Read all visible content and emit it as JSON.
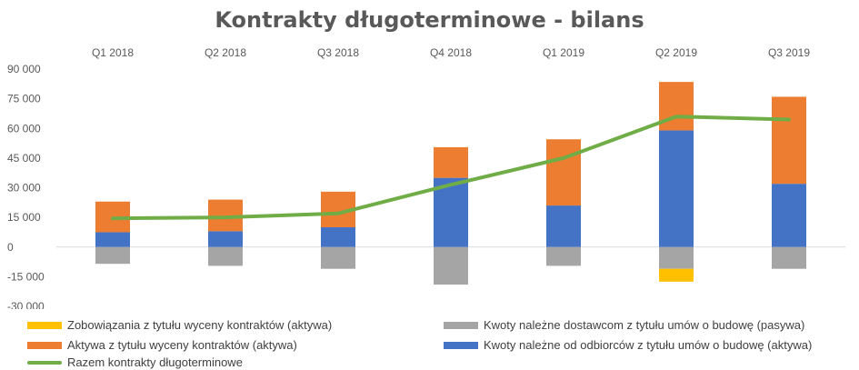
{
  "chart_data": {
    "type": "bar",
    "title": "Kontrakty długoterminowe - bilans",
    "categories": [
      "Q1 2018",
      "Q2 2018",
      "Q3 2018",
      "Q4 2018",
      "Q1 2019",
      "Q2 2019",
      "Q3 2019"
    ],
    "ylim": [
      -30000,
      90000
    ],
    "yticks": [
      "-30 000",
      "-15 000",
      "0",
      "15 000",
      "30 000",
      "45 000",
      "60 000",
      "75 000",
      "90 000"
    ],
    "ytick_values": [
      -30000,
      -15000,
      0,
      15000,
      30000,
      45000,
      60000,
      75000,
      90000
    ],
    "stacked": true,
    "series": [
      {
        "name": "Kwoty należne od odbiorców z tytułu umów o budowę (aktywa)",
        "kind": "bar",
        "color": "#4472C4",
        "values": [
          7500,
          8000,
          10000,
          35000,
          21000,
          59000,
          32000
        ]
      },
      {
        "name": "Aktywa z tytułu wyceny kontraktów (aktywa)",
        "kind": "bar",
        "color": "#ED7D31",
        "values": [
          15500,
          16000,
          18000,
          15500,
          33500,
          24500,
          44000
        ]
      },
      {
        "name": "Kwoty należne dostawcom z tytułu umów o budowę (pasywa)",
        "kind": "bar",
        "color": "#A5A5A5",
        "values": [
          -8500,
          -9500,
          -11000,
          -19000,
          -9500,
          -11000,
          -11000
        ]
      },
      {
        "name": "Zobowiązania z tytułu wyceny kontraktów (aktywa)",
        "kind": "bar",
        "color": "#FFC000",
        "values": [
          0,
          0,
          0,
          0,
          0,
          -6500,
          0
        ]
      },
      {
        "name": "Razem kontrakty długoterminowe",
        "kind": "line",
        "color": "#70AD47",
        "values": [
          14500,
          15000,
          17000,
          31500,
          45000,
          66000,
          64500
        ]
      }
    ],
    "legend_position": "bottom",
    "grid": false
  }
}
